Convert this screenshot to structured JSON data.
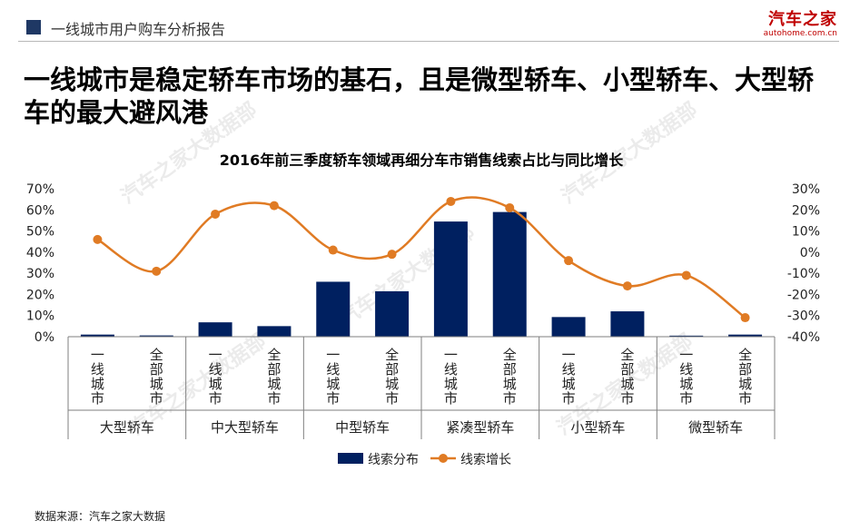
{
  "header": {
    "section_title": "一线城市用户购车分析报告",
    "logo_main": "汽车之家",
    "logo_sub": "autohome.com.cn"
  },
  "headline": "一线城市是稳定轿车市场的基石，且是微型轿车、小型轿车、大型轿车的最大避风港",
  "watermark": "汽车之家大数据部",
  "footer": {
    "source": "数据来源：汽车之家大数据"
  },
  "colors": {
    "bar": "#002060",
    "line": "#e07b24",
    "axis": "#7f7f7f"
  },
  "chart_data": {
    "type": "bar",
    "title": "2016年前三季度轿车领域再细分车市销售线索占比与同比增长",
    "groups": [
      "大型轿车",
      "中大型轿车",
      "中型轿车",
      "紧凑型轿车",
      "小型轿车",
      "微型轿车"
    ],
    "categories": [
      "一线城市",
      "全部城市",
      "一线城市",
      "全部城市",
      "一线城市",
      "全部城市",
      "一线城市",
      "全部城市",
      "一线城市",
      "全部城市",
      "一线城市",
      "全部城市"
    ],
    "yticks_left": [
      "70%",
      "60%",
      "50%",
      "40%",
      "30%",
      "20%",
      "10%",
      "0%"
    ],
    "yticks_right": [
      "30%",
      "20%",
      "10%",
      "0%",
      "-10%",
      "-20%",
      "-30%",
      "-40%"
    ],
    "ylim_left": [
      0,
      70
    ],
    "ylim_right": [
      -40,
      30
    ],
    "legend_position": "bottom",
    "series": [
      {
        "name": "线索分布",
        "type": "bar",
        "axis": "left",
        "values": [
          1.0,
          0.6,
          6.8,
          5.0,
          26.0,
          21.5,
          54.5,
          59.0,
          9.3,
          12.0,
          0.5,
          1.0
        ]
      },
      {
        "name": "线索增长",
        "type": "line",
        "axis": "right",
        "values": [
          6,
          -9,
          18,
          22,
          1,
          -1,
          24,
          21,
          -4,
          -16,
          -11,
          -31
        ]
      }
    ]
  }
}
